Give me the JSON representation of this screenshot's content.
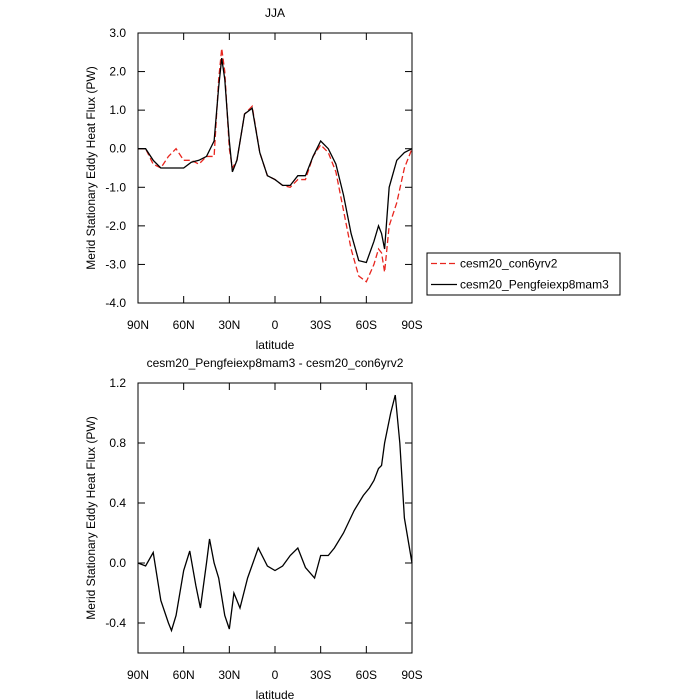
{
  "chart_data": [
    {
      "type": "line",
      "title": "JJA",
      "ylabel": "Merid Stationary Eddy Heat Flux (PW)",
      "xlabel": "latitude",
      "legend": "outside right",
      "x": [
        90,
        85,
        80,
        75,
        70,
        65,
        60,
        55,
        50,
        45,
        40,
        37,
        35,
        33,
        30,
        28,
        25,
        20,
        15,
        10,
        5,
        0,
        -5,
        -10,
        -15,
        -20,
        -25,
        -30,
        -35,
        -40,
        -45,
        -50,
        -55,
        -60,
        -65,
        -68,
        -70,
        -72,
        -75,
        -80,
        -85,
        -90
      ],
      "series": [
        {
          "name": "cesm20_con6yrv2",
          "color": "#e8261f",
          "dash": true,
          "values": [
            0,
            0,
            -0.4,
            -0.5,
            -0.2,
            0.0,
            -0.3,
            -0.3,
            -0.4,
            -0.2,
            -0.2,
            1.8,
            2.6,
            2.0,
            0.0,
            -0.5,
            -0.3,
            0.9,
            1.1,
            -0.1,
            -0.7,
            -0.8,
            -0.95,
            -1.0,
            -0.8,
            -0.8,
            -0.2,
            0.1,
            -0.1,
            -0.6,
            -1.6,
            -2.6,
            -3.3,
            -3.45,
            -3.0,
            -2.6,
            -2.7,
            -3.2,
            -2.0,
            -1.4,
            -0.5,
            0.0
          ]
        },
        {
          "name": "cesm20_Pengfeiexp8mam3",
          "color": "#000000",
          "dash": false,
          "values": [
            0,
            0,
            -0.3,
            -0.5,
            -0.5,
            -0.5,
            -0.5,
            -0.35,
            -0.3,
            -0.2,
            0.2,
            1.6,
            2.35,
            1.8,
            0.2,
            -0.6,
            -0.3,
            0.9,
            1.05,
            -0.1,
            -0.7,
            -0.8,
            -0.95,
            -0.95,
            -0.7,
            -0.7,
            -0.2,
            0.2,
            0.0,
            -0.4,
            -1.2,
            -2.2,
            -2.9,
            -2.95,
            -2.4,
            -2.0,
            -2.2,
            -2.6,
            -1.0,
            -0.3,
            -0.1,
            0.0
          ]
        }
      ],
      "xlim": [
        90,
        -90
      ],
      "xticks": [
        {
          "value": 90,
          "label": "90N"
        },
        {
          "value": 60,
          "label": "60N"
        },
        {
          "value": 30,
          "label": "30N"
        },
        0,
        {
          "value": -30,
          "label": "30S"
        },
        {
          "value": -60,
          "label": "60S"
        },
        {
          "value": -90,
          "label": "90S"
        }
      ],
      "ylim": [
        -4,
        3
      ],
      "yticks": [
        {
          "value": 3,
          "label": "3.0"
        },
        {
          "value": 2,
          "label": "2.0"
        },
        {
          "value": 1,
          "label": "1.0"
        },
        {
          "value": 0,
          "label": "0.0"
        },
        {
          "value": -1,
          "label": "-1.0"
        },
        {
          "value": -2,
          "label": "-2.0"
        },
        {
          "value": -3,
          "label": "-3.0"
        },
        {
          "value": -4,
          "label": "-4.0"
        }
      ]
    },
    {
      "type": "line",
      "title": "cesm20_Pengfeiexp8mam3 - cesm20_con6yrv2",
      "ylabel": "Merid Stationary Eddy Heat Flux (PW)",
      "xlabel": "latitude",
      "x": [
        90,
        85,
        80,
        75,
        70,
        68,
        65,
        60,
        56,
        52,
        49,
        45,
        43,
        40,
        37,
        33,
        30,
        27,
        23,
        18,
        11,
        5,
        0,
        -5,
        -10,
        -15,
        -20,
        -26,
        -30,
        -35,
        -39,
        -45,
        -52,
        -58,
        -62,
        -65,
        -68,
        -70,
        -72,
        -76,
        -79,
        -82,
        -85,
        -90
      ],
      "series": [
        {
          "color": "#000000",
          "dash": false,
          "values": [
            0,
            -0.02,
            0.07,
            -0.25,
            -0.4,
            -0.45,
            -0.35,
            -0.05,
            0.08,
            -0.15,
            -0.3,
            0.0,
            0.16,
            0.0,
            -0.1,
            -0.35,
            -0.44,
            -0.2,
            -0.3,
            -0.1,
            0.1,
            -0.02,
            -0.05,
            -0.02,
            0.05,
            0.1,
            -0.03,
            -0.1,
            0.05,
            0.05,
            0.1,
            0.2,
            0.35,
            0.45,
            0.5,
            0.55,
            0.63,
            0.65,
            0.8,
            1.0,
            1.12,
            0.8,
            0.3,
            0.0
          ]
        }
      ],
      "xlim": [
        90,
        -90
      ],
      "xticks": [
        {
          "value": 90,
          "label": "90N"
        },
        {
          "value": 60,
          "label": "60N"
        },
        {
          "value": 30,
          "label": "30N"
        },
        0,
        {
          "value": -30,
          "label": "30S"
        },
        {
          "value": -60,
          "label": "60S"
        },
        {
          "value": -90,
          "label": "90S"
        }
      ],
      "ylim": [
        -0.6,
        1.2
      ],
      "yticks": [
        1.2,
        0.8,
        0.4,
        {
          "value": 0,
          "label": "0.0"
        },
        -0.4
      ]
    }
  ]
}
